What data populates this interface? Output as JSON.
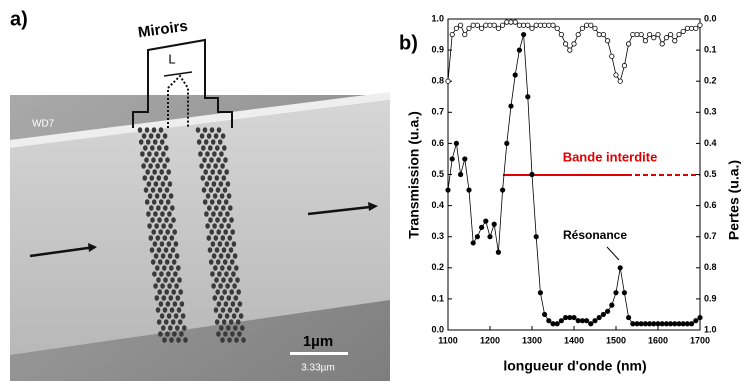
{
  "figure_a": {
    "label": "a)",
    "mirrors": "Miroirs",
    "length": "L",
    "wd": "WD7",
    "scale": "1µm",
    "scale_small": "3.33µm"
  },
  "chart_data": {
    "type": "line",
    "panel_label": "b)",
    "x_label": "longueur d'onde (nm)",
    "y_label": "Transmission (u.a.)",
    "y2_label": "Pertes (u.a.)",
    "annotations": [
      "Bande interdite",
      "Résonance"
    ],
    "xlim": [
      1100,
      1700
    ],
    "xticks": [
      1100,
      1200,
      1300,
      1400,
      1500,
      1600,
      1700
    ],
    "ylim": [
      0,
      1
    ],
    "yticks": [
      {
        "value": 0,
        "label": "0.0"
      },
      0.1,
      0.2,
      0.3,
      0.4,
      0.5,
      0.6,
      0.7,
      0.8,
      0.9,
      {
        "value": 1,
        "label": "1.0"
      }
    ],
    "y2lim": [
      1,
      0
    ],
    "y2ticks": [
      {
        "value": 0,
        "label": "0.0"
      },
      0.1,
      0.2,
      0.3,
      0.4,
      0.5,
      0.6,
      0.7,
      0.8,
      0.9,
      {
        "value": 1,
        "label": "1.0"
      }
    ],
    "x": [
      1100,
      1110,
      1120,
      1130,
      1140,
      1150,
      1160,
      1170,
      1180,
      1190,
      1200,
      1210,
      1220,
      1230,
      1240,
      1250,
      1260,
      1270,
      1280,
      1290,
      1300,
      1310,
      1320,
      1330,
      1340,
      1350,
      1360,
      1370,
      1380,
      1390,
      1400,
      1410,
      1420,
      1430,
      1440,
      1450,
      1460,
      1470,
      1480,
      1490,
      1500,
      1510,
      1520,
      1530,
      1540,
      1550,
      1560,
      1570,
      1580,
      1590,
      1600,
      1610,
      1620,
      1630,
      1640,
      1650,
      1660,
      1670,
      1680,
      1690,
      1700
    ],
    "series": [
      {
        "color": "#000000",
        "marker": "filled",
        "values": [
          0.45,
          0.55,
          0.6,
          0.5,
          0.55,
          0.45,
          0.28,
          0.3,
          0.33,
          0.35,
          0.3,
          0.34,
          0.25,
          0.45,
          0.6,
          0.72,
          0.82,
          0.9,
          0.95,
          0.75,
          0.5,
          0.3,
          0.12,
          0.05,
          0.03,
          0.02,
          0.02,
          0.03,
          0.04,
          0.04,
          0.04,
          0.03,
          0.03,
          0.03,
          0.02,
          0.03,
          0.04,
          0.05,
          0.06,
          0.08,
          0.12,
          0.2,
          0.12,
          0.04,
          0.02,
          0.02,
          0.02,
          0.02,
          0.02,
          0.02,
          0.02,
          0.02,
          0.02,
          0.02,
          0.02,
          0.02,
          0.02,
          0.02,
          0.02,
          0.03,
          0.04
        ]
      },
      {
        "color": "#000000",
        "marker": "open",
        "axis": "y2",
        "values": [
          0.2,
          0.05,
          0.03,
          0.02,
          0.05,
          0.03,
          0.02,
          0.02,
          0.03,
          0.02,
          0.02,
          0.02,
          0.03,
          0.02,
          0.01,
          0.01,
          0.01,
          0.02,
          0.02,
          0.02,
          0.03,
          0.02,
          0.02,
          0.02,
          0.02,
          0.02,
          0.03,
          0.05,
          0.08,
          0.1,
          0.08,
          0.05,
          0.03,
          0.02,
          0.02,
          0.03,
          0.05,
          0.05,
          0.07,
          0.12,
          0.18,
          0.2,
          0.15,
          0.08,
          0.05,
          0.05,
          0.05,
          0.07,
          0.05,
          0.06,
          0.05,
          0.08,
          0.06,
          0.05,
          0.07,
          0.05,
          0.04,
          0.03,
          0.03,
          0.03,
          0.02
        ]
      }
    ]
  }
}
